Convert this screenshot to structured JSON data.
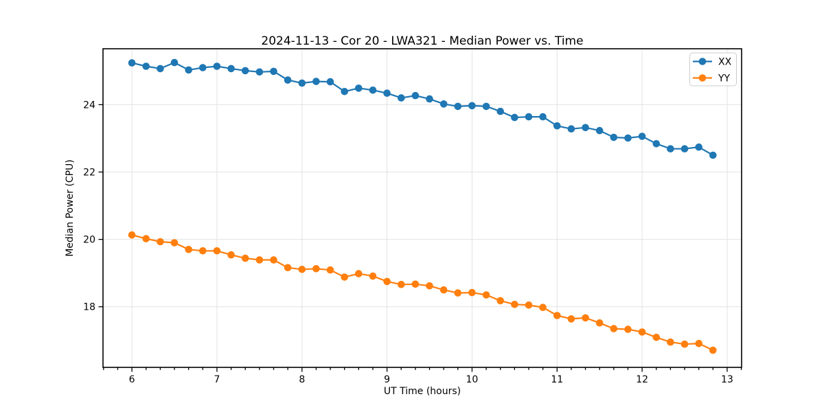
{
  "chart_data": {
    "type": "line",
    "title": "2024-11-13 - Cor 20 - LWA321 - Median Power vs. Time",
    "xlabel": "UT Time (hours)",
    "ylabel": "Median Power (CPU)",
    "grid": true,
    "legend_position": "upper right",
    "marker": "o",
    "xlim": [
      5.66,
      13.17
    ],
    "ylim": [
      16.2,
      25.66
    ],
    "xticks": [
      6,
      7,
      8,
      9,
      10,
      11,
      12,
      13
    ],
    "yticks": [
      18,
      20,
      22,
      24
    ],
    "x_minor_step": 0.16667,
    "x": [
      6,
      6.1667,
      6.3333,
      6.5,
      6.6667,
      6.8333,
      7,
      7.1667,
      7.3333,
      7.5,
      7.6667,
      7.8333,
      8,
      8.1667,
      8.3333,
      8.5,
      8.6667,
      8.8333,
      9,
      9.1667,
      9.3333,
      9.5,
      9.6667,
      9.8333,
      10,
      10.1667,
      10.3333,
      10.5,
      10.6667,
      10.8333,
      11,
      11.1667,
      11.3333,
      11.5,
      11.6667,
      11.8333,
      12,
      12.1667,
      12.3333,
      12.5,
      12.6667,
      12.8333
    ],
    "series": [
      {
        "name": "XX",
        "color": "#1f77b4",
        "values": [
          25.24,
          25.14,
          25.07,
          25.25,
          25.03,
          25.1,
          25.14,
          25.07,
          25.01,
          24.97,
          24.99,
          24.73,
          24.64,
          24.69,
          24.68,
          24.39,
          24.49,
          24.43,
          24.34,
          24.2,
          24.27,
          24.17,
          24.02,
          23.95,
          23.97,
          23.95,
          23.8,
          23.62,
          23.64,
          23.64,
          23.37,
          23.28,
          23.32,
          23.23,
          23.03,
          23.01,
          23.06,
          22.84,
          22.69,
          22.69,
          22.74,
          22.5
        ]
      },
      {
        "name": "YY",
        "color": "#ff7f0e",
        "values": [
          20.13,
          20.02,
          19.93,
          19.9,
          19.7,
          19.66,
          19.66,
          19.54,
          19.44,
          19.39,
          19.39,
          19.16,
          19.11,
          19.13,
          19.09,
          18.88,
          18.98,
          18.91,
          18.75,
          18.66,
          18.67,
          18.62,
          18.5,
          18.41,
          18.42,
          18.35,
          18.18,
          18.07,
          18.05,
          17.98,
          17.74,
          17.64,
          17.67,
          17.52,
          17.35,
          17.33,
          17.25,
          17.09,
          16.95,
          16.89,
          16.91,
          16.71
        ]
      }
    ]
  }
}
